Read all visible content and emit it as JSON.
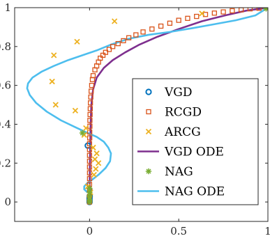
{
  "chart_data": {
    "type": "scatter",
    "title": "",
    "xlabel": "",
    "ylabel": "",
    "xlim": [
      -0.42,
      1.0
    ],
    "ylim": [
      -0.1,
      1.0
    ],
    "x_ticks": [
      0,
      0.5,
      1
    ],
    "x_tick_labels": [
      "0",
      "0.5",
      "1"
    ],
    "y_ticks": [
      0,
      0.2,
      0.4,
      0.6,
      0.8,
      1
    ],
    "y_tick_labels": [
      "0",
      "0.2",
      "0.4",
      "0.6",
      "0.8",
      "1"
    ],
    "grid": false,
    "legend_position": "bottom-right",
    "series": [
      {
        "name": "VGD",
        "kind": "marker",
        "marker": "circle",
        "color": "#0072BD",
        "points": [
          [
            0,
            0
          ],
          [
            0,
            0.01
          ],
          [
            0,
            0.02
          ],
          [
            0.001,
            0.03
          ],
          [
            -0.01,
            0.29
          ]
        ]
      },
      {
        "name": "RCGD",
        "kind": "marker",
        "marker": "square",
        "color": "#D95319",
        "points": [
          [
            0,
            0.0
          ],
          [
            0,
            0.03
          ],
          [
            0,
            0.06
          ],
          [
            0,
            0.09
          ],
          [
            0,
            0.12
          ],
          [
            0,
            0.15
          ],
          [
            0,
            0.18
          ],
          [
            0,
            0.21
          ],
          [
            0,
            0.24
          ],
          [
            0,
            0.27
          ],
          [
            0,
            0.3
          ],
          [
            0.001,
            0.33
          ],
          [
            0.001,
            0.36
          ],
          [
            0.002,
            0.39
          ],
          [
            0.002,
            0.42
          ],
          [
            0.003,
            0.45
          ],
          [
            0.004,
            0.48
          ],
          [
            0.005,
            0.51
          ],
          [
            0.007,
            0.54
          ],
          [
            0.009,
            0.57
          ],
          [
            0.012,
            0.6
          ],
          [
            0.016,
            0.63
          ],
          [
            0.02,
            0.65
          ],
          [
            0.03,
            0.68
          ],
          [
            0.04,
            0.7
          ],
          [
            0.05,
            0.72
          ],
          [
            0.06,
            0.74
          ],
          [
            0.075,
            0.755
          ],
          [
            0.09,
            0.77
          ],
          [
            0.11,
            0.785
          ],
          [
            0.13,
            0.8
          ],
          [
            0.16,
            0.815
          ],
          [
            0.19,
            0.83
          ],
          [
            0.22,
            0.845
          ],
          [
            0.26,
            0.86
          ],
          [
            0.3,
            0.875
          ],
          [
            0.35,
            0.89
          ],
          [
            0.4,
            0.905
          ],
          [
            0.45,
            0.92
          ],
          [
            0.5,
            0.935
          ],
          [
            0.55,
            0.945
          ],
          [
            0.6,
            0.955
          ],
          [
            0.65,
            0.965
          ],
          [
            0.7,
            0.972
          ],
          [
            0.75,
            0.978
          ],
          [
            0.8,
            0.984
          ],
          [
            0.85,
            0.989
          ],
          [
            0.9,
            0.994
          ],
          [
            0.95,
            0.997
          ],
          [
            1.0,
            1.0
          ]
        ]
      },
      {
        "name": "ARCG",
        "kind": "marker",
        "marker": "cross",
        "color": "#EDB120",
        "points": [
          [
            -0.2,
            0.755
          ],
          [
            -0.07,
            0.825
          ],
          [
            0.14,
            0.93
          ],
          [
            0.63,
            0.97
          ],
          [
            -0.21,
            0.62
          ],
          [
            -0.19,
            0.5
          ],
          [
            -0.08,
            0.47
          ],
          [
            -0.02,
            0.38
          ],
          [
            -0.03,
            0.345
          ],
          [
            0.02,
            0.28
          ],
          [
            0.04,
            0.25
          ],
          [
            0.03,
            0.22
          ],
          [
            0.05,
            0.2
          ],
          [
            0.035,
            0.17
          ],
          [
            0.025,
            0.14
          ],
          [
            -0.01,
            0.08
          ],
          [
            0.005,
            0.05
          ],
          [
            0.0,
            0.02
          ]
        ]
      },
      {
        "name": "VGD ODE",
        "kind": "line",
        "color": "#7E2F8E",
        "points": [
          [
            0,
            0
          ],
          [
            0.001,
            0.1
          ],
          [
            0.002,
            0.2
          ],
          [
            0.004,
            0.3
          ],
          [
            0.006,
            0.4
          ],
          [
            0.01,
            0.5
          ],
          [
            0.02,
            0.58
          ],
          [
            0.04,
            0.64
          ],
          [
            0.08,
            0.69
          ],
          [
            0.13,
            0.73
          ],
          [
            0.2,
            0.77
          ],
          [
            0.28,
            0.81
          ],
          [
            0.38,
            0.85
          ],
          [
            0.5,
            0.89
          ],
          [
            0.63,
            0.93
          ],
          [
            0.76,
            0.96
          ],
          [
            0.88,
            0.985
          ],
          [
            1.0,
            1.0
          ]
        ]
      },
      {
        "name": "NAG",
        "kind": "marker",
        "marker": "star",
        "color": "#77AC30",
        "points": [
          [
            -0.04,
            0.355
          ],
          [
            0,
            0.07
          ],
          [
            0,
            0.05
          ],
          [
            0,
            0.03
          ],
          [
            0,
            0.01
          ],
          [
            0,
            0.0
          ],
          [
            0.99,
            0.995
          ]
        ]
      },
      {
        "name": "NAG ODE",
        "kind": "line",
        "color": "#4DBEEE",
        "points": [
          [
            1.0,
            1.0
          ],
          [
            0.93,
            0.96
          ],
          [
            0.82,
            0.935
          ],
          [
            0.7,
            0.915
          ],
          [
            0.58,
            0.895
          ],
          [
            0.45,
            0.875
          ],
          [
            0.33,
            0.86
          ],
          [
            0.22,
            0.84
          ],
          [
            0.12,
            0.81
          ],
          [
            0.04,
            0.78
          ],
          [
            -0.04,
            0.755
          ],
          [
            -0.12,
            0.73
          ],
          [
            -0.2,
            0.7
          ],
          [
            -0.27,
            0.67
          ],
          [
            -0.32,
            0.64
          ],
          [
            -0.345,
            0.61
          ],
          [
            -0.35,
            0.585
          ],
          [
            -0.335,
            0.55
          ],
          [
            -0.3,
            0.51
          ],
          [
            -0.24,
            0.465
          ],
          [
            -0.16,
            0.42
          ],
          [
            -0.08,
            0.385
          ],
          [
            -0.01,
            0.355
          ],
          [
            0.04,
            0.335
          ],
          [
            0.08,
            0.31
          ],
          [
            0.105,
            0.28
          ],
          [
            0.12,
            0.25
          ],
          [
            0.115,
            0.21
          ],
          [
            0.09,
            0.175
          ],
          [
            0.05,
            0.14
          ],
          [
            0.015,
            0.115
          ],
          [
            -0.015,
            0.095
          ],
          [
            -0.03,
            0.08
          ],
          [
            -0.03,
            0.065
          ],
          [
            -0.015,
            0.052
          ],
          [
            0.0,
            0.05
          ],
          [
            0.01,
            0.055
          ],
          [
            0.012,
            0.065
          ],
          [
            0.005,
            0.072
          ],
          [
            0.0,
            0.068
          ]
        ]
      }
    ]
  }
}
